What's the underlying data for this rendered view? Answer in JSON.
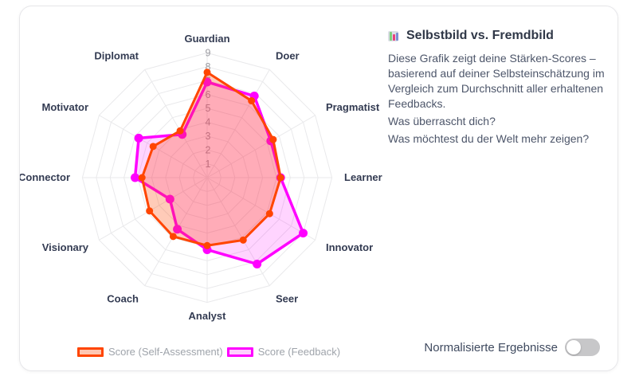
{
  "info_panel": {
    "icon": "bar-chart-icon",
    "title": "Selbstbild vs. Fremdbild",
    "paragraphs": [
      "Diese Grafik zeigt deine Stärken-Scores – basierend auf deiner Selbsteinschätzung im Vergleich zum Durchschnitt aller erhaltenen Feedbacks.",
      "Was überrascht dich?",
      "Was möchtest du der Welt mehr zeigen?"
    ]
  },
  "footer": {
    "normalized_label": "Normalisierte Ergebnisse",
    "toggle_state": "off"
  },
  "colors": {
    "self_assessment": "#ff4500",
    "feedback": "#ff00ff",
    "grid": "#e9e9eb",
    "ticks": "#9b9ba1",
    "axis_labels": "#333b52"
  },
  "chart_data": {
    "type": "radar",
    "title": "Selbstbild vs. Fremdbild",
    "axes": [
      "Guardian",
      "Doer",
      "Pragmatist",
      "Learner",
      "Innovator",
      "Seer",
      "Analyst",
      "Coach",
      "Visionary",
      "Connector",
      "Motivator",
      "Diplomat"
    ],
    "scale": {
      "min": 0,
      "max": 9,
      "tick_labels": [
        1,
        2,
        3,
        4,
        5,
        6,
        7,
        8,
        9
      ]
    },
    "grid_shape": "polygon",
    "legend_position": "bottom",
    "series": [
      {
        "name": "Score (Self-Assessment)",
        "color": "#ff4500",
        "values": [
          7.6,
          6.4,
          5.5,
          5.3,
          5.2,
          5.2,
          4.9,
          4.9,
          4.8,
          4.7,
          4.5,
          3.9
        ]
      },
      {
        "name": "Score (Feedback)",
        "color": "#ff00ff",
        "values": [
          6.9,
          6.8,
          5.3,
          5.3,
          8.0,
          7.2,
          5.2,
          4.3,
          3.1,
          5.2,
          5.7,
          3.6
        ]
      }
    ]
  }
}
